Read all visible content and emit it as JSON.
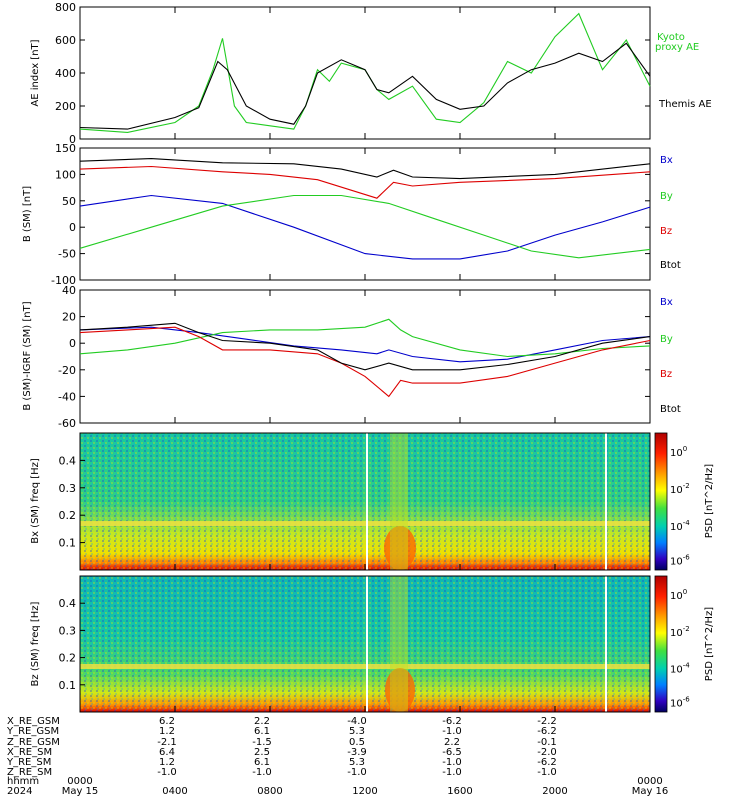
{
  "colors": {
    "black": "#000000",
    "blue": "#0000cc",
    "green": "#22cc22",
    "red": "#dd0000"
  },
  "chart_data": [
    {
      "type": "line",
      "ylabel": "AE index [nT]",
      "ylim": [
        0,
        800
      ],
      "yticks": [
        0,
        200,
        400,
        600,
        800
      ],
      "series": [
        {
          "name": "Kyoto proxy AE",
          "color": "#22cc22",
          "x": [
            0,
            2,
            4,
            5,
            5.6,
            6,
            6.5,
            7,
            8,
            9,
            9.5,
            10,
            10.5,
            11,
            12,
            12.5,
            13,
            14,
            15,
            16,
            17,
            18,
            19,
            20,
            21,
            22,
            23,
            24
          ],
          "y": [
            60,
            40,
            100,
            200,
            420,
            610,
            200,
            100,
            80,
            60,
            200,
            420,
            350,
            460,
            420,
            300,
            240,
            320,
            120,
            100,
            220,
            470,
            400,
            620,
            760,
            420,
            600,
            320
          ]
        },
        {
          "name": "Themis AE",
          "color": "#000000",
          "x": [
            0,
            2,
            4,
            5,
            5.8,
            6.2,
            7,
            8,
            9,
            9.5,
            10,
            11,
            12,
            12.5,
            13,
            14,
            15,
            16,
            17,
            18,
            19,
            20,
            21,
            22,
            23,
            24
          ],
          "y": [
            70,
            60,
            130,
            190,
            470,
            420,
            200,
            120,
            90,
            200,
            400,
            480,
            420,
            300,
            280,
            380,
            240,
            180,
            200,
            340,
            420,
            460,
            520,
            470,
            580,
            380
          ]
        }
      ]
    },
    {
      "type": "line",
      "ylabel": "B (SM) [nT]",
      "ylim": [
        -100,
        150
      ],
      "yticks": [
        -100,
        -50,
        0,
        50,
        100,
        150
      ],
      "series": [
        {
          "name": "Bx",
          "color": "#0000cc",
          "x": [
            0,
            3,
            6,
            9,
            12,
            14,
            16,
            18,
            20,
            22,
            24
          ],
          "y": [
            40,
            60,
            45,
            0,
            -50,
            -60,
            -60,
            -45,
            -15,
            10,
            38
          ]
        },
        {
          "name": "By",
          "color": "#22cc22",
          "x": [
            0,
            3,
            6,
            9,
            11,
            13,
            15,
            17,
            19,
            21,
            24
          ],
          "y": [
            -40,
            0,
            40,
            60,
            60,
            45,
            15,
            -15,
            -45,
            -58,
            -42
          ]
        },
        {
          "name": "Bz",
          "color": "#dd0000",
          "x": [
            0,
            3,
            6,
            8,
            10,
            12.5,
            13.2,
            14,
            16,
            20,
            24
          ],
          "y": [
            110,
            115,
            105,
            100,
            90,
            55,
            85,
            78,
            85,
            92,
            105
          ]
        },
        {
          "name": "Btot",
          "color": "#000000",
          "x": [
            0,
            3,
            6,
            9,
            11,
            12.5,
            13.2,
            14,
            16,
            20,
            24
          ],
          "y": [
            125,
            130,
            122,
            120,
            110,
            95,
            108,
            95,
            92,
            100,
            120
          ]
        }
      ]
    },
    {
      "type": "line",
      "ylabel": "B (SM)-IGRF (SM) [nT]",
      "ylim": [
        -60,
        40
      ],
      "yticks": [
        -60,
        -40,
        -20,
        0,
        20,
        40
      ],
      "series": [
        {
          "name": "Bx",
          "color": "#0000cc",
          "x": [
            0,
            3,
            5,
            7,
            9,
            11,
            12.5,
            13,
            14,
            16,
            18,
            20,
            22,
            24
          ],
          "y": [
            10,
            12,
            8,
            3,
            -2,
            -5,
            -8,
            -5,
            -10,
            -14,
            -12,
            -5,
            2,
            5
          ]
        },
        {
          "name": "By",
          "color": "#22cc22",
          "x": [
            0,
            2,
            4,
            6,
            8,
            10,
            12,
            13,
            13.5,
            14,
            16,
            18,
            20,
            22,
            24
          ],
          "y": [
            -8,
            -5,
            0,
            8,
            10,
            10,
            12,
            18,
            10,
            5,
            -5,
            -10,
            -8,
            -4,
            -2
          ]
        },
        {
          "name": "Bz",
          "color": "#dd0000",
          "x": [
            0,
            2,
            4,
            5,
            6,
            8,
            10,
            11,
            12,
            13,
            13.5,
            14,
            16,
            18,
            20,
            22,
            24
          ],
          "y": [
            8,
            10,
            12,
            5,
            -5,
            -5,
            -8,
            -15,
            -25,
            -40,
            -28,
            -30,
            -30,
            -25,
            -15,
            -5,
            2
          ]
        },
        {
          "name": "Btot",
          "color": "#000000",
          "x": [
            0,
            2,
            4,
            5,
            6,
            8,
            10,
            11,
            12,
            13,
            14,
            16,
            18,
            20,
            22,
            24
          ],
          "y": [
            10,
            12,
            15,
            8,
            2,
            0,
            -5,
            -15,
            -20,
            -15,
            -20,
            -20,
            -16,
            -10,
            0,
            5
          ]
        }
      ]
    },
    {
      "type": "heatmap",
      "ylabel": "Bx (SM) freq [Hz]",
      "yticks": [
        0.1,
        0.2,
        0.3,
        0.4
      ],
      "ylim": [
        0,
        0.5
      ],
      "colorbar_label": "PSD [nT^2/Hz]",
      "colorbar_ticks": [
        "10^0",
        "10^-2",
        "10^-4",
        "10^-6"
      ]
    },
    {
      "type": "heatmap",
      "ylabel": "Bz (SM) freq [Hz]",
      "yticks": [
        0.1,
        0.2,
        0.3,
        0.4
      ],
      "ylim": [
        0,
        0.5
      ],
      "colorbar_label": "PSD [nT^2/Hz]",
      "colorbar_ticks": [
        "10^0",
        "10^-2",
        "10^-4",
        "10^-6"
      ]
    }
  ],
  "legends": [
    {
      "items": [
        {
          "text": "Kyoto",
          "color": "#22cc22"
        },
        {
          "text": "proxy AE",
          "color": "#22cc22"
        },
        {
          "text": "Themis AE",
          "color": "#000000"
        }
      ]
    },
    {
      "items": [
        {
          "text": "Bx",
          "color": "#0000cc"
        },
        {
          "text": "By",
          "color": "#22cc22"
        },
        {
          "text": "Bz",
          "color": "#dd0000"
        },
        {
          "text": "Btot",
          "color": "#000000"
        }
      ]
    },
    {
      "items": [
        {
          "text": "Bx",
          "color": "#0000cc"
        },
        {
          "text": "By",
          "color": "#22cc22"
        },
        {
          "text": "Bz",
          "color": "#dd0000"
        },
        {
          "text": "Btot",
          "color": "#000000"
        }
      ]
    }
  ],
  "xaxis": {
    "hours": [
      0,
      4,
      8,
      12,
      16,
      20,
      24
    ],
    "row_labels": [
      "X_RE_GSM",
      "Y_RE_GSM",
      "Z_RE_GSM",
      "X_RE_SM",
      "Y_RE_SM",
      "Z_RE_SM",
      "hhmm",
      "2024"
    ],
    "tick_values": [
      [
        "6.2",
        "2.2",
        "-4.0",
        "-6.2",
        "-2.2"
      ],
      [
        "1.2",
        "6.1",
        "5.3",
        "-1.0",
        "-6.2"
      ],
      [
        "-2.1",
        "-1.5",
        "0.5",
        "2.2",
        "-0.1"
      ],
      [
        "6.4",
        "2.5",
        "-3.9",
        "-6.5",
        "-2.0"
      ],
      [
        "1.2",
        "6.1",
        "5.3",
        "-1.0",
        "-6.2"
      ],
      [
        "-1.0",
        "-1.0",
        "-1.0",
        "-1.0",
        "-1.0"
      ]
    ],
    "hhmm": [
      "0000",
      "0400",
      "0800",
      "1200",
      "1600",
      "2000",
      "0000"
    ],
    "start_date": "May 15",
    "end_date": "May 16"
  }
}
